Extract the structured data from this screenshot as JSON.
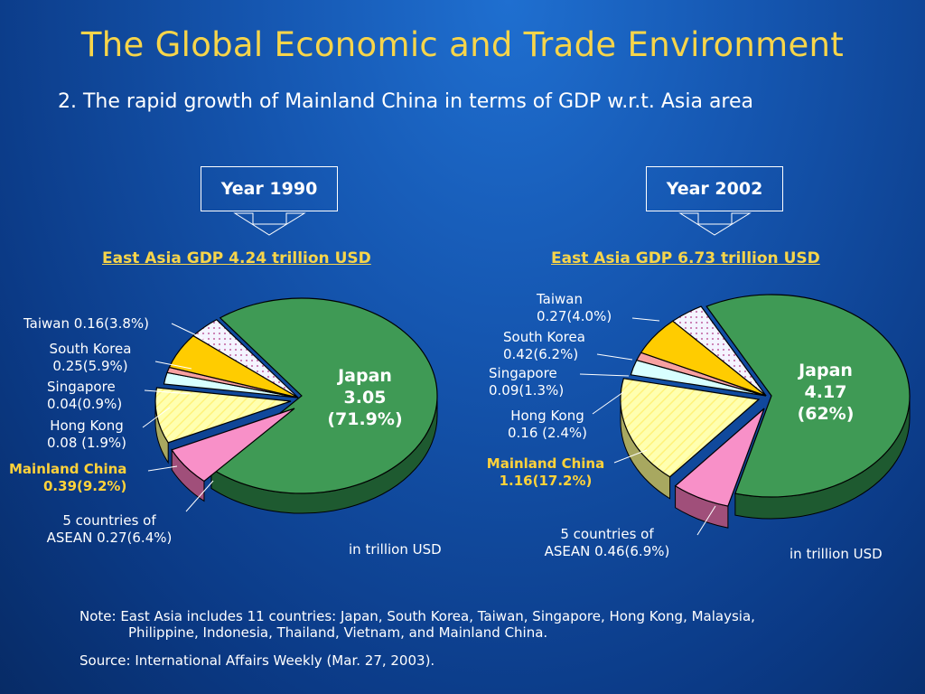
{
  "title": "The Global Economic and Trade Environment",
  "subtitle": "2. The rapid growth of Mainland China in terms of GDP w.r.t. Asia area",
  "colors": {
    "title": "#f7d54a",
    "japan": "#3f9a55",
    "mainland": "#ffffc0",
    "asean": "#f890c8",
    "hongkong": "#d8ffff",
    "singapore": "#f8a0a0",
    "korea": "#ffcc00",
    "taiwan": "#f4f4ff"
  },
  "chart_data": [
    {
      "type": "pie",
      "year_label": "Year 1990",
      "title": "East Asia GDP 4.24 trillion USD",
      "unit_note": "in trillion USD",
      "slices": [
        {
          "name": "Japan",
          "value": 3.05,
          "percent": 71.9,
          "label_lines": [
            "Japan",
            "3.05",
            "(71.9%)"
          ]
        },
        {
          "name": "5 countries of ASEAN",
          "value": 0.27,
          "percent": 6.4,
          "label_lines": [
            "5 countries of",
            "ASEAN 0.27(6.4%)"
          ]
        },
        {
          "name": "Mainland China",
          "value": 0.39,
          "percent": 9.2,
          "label_lines": [
            "Mainland China",
            "0.39(9.2%)"
          ]
        },
        {
          "name": "Hong Kong",
          "value": 0.08,
          "percent": 1.9,
          "label_lines": [
            "Hong Kong",
            "0.08 (1.9%)"
          ]
        },
        {
          "name": "Singapore",
          "value": 0.04,
          "percent": 0.9,
          "label_lines": [
            "Singapore",
            "0.04(0.9%)"
          ]
        },
        {
          "name": "South Korea",
          "value": 0.25,
          "percent": 5.9,
          "label_lines": [
            "South Korea",
            "0.25(5.9%)"
          ]
        },
        {
          "name": "Taiwan",
          "value": 0.16,
          "percent": 3.8,
          "label_lines": [
            "Taiwan 0.16(3.8%)"
          ]
        }
      ]
    },
    {
      "type": "pie",
      "year_label": "Year 2002",
      "title": "East Asia GDP 6.73 trillion USD",
      "unit_note": "in trillion USD",
      "slices": [
        {
          "name": "Japan",
          "value": 4.17,
          "percent": 62,
          "label_lines": [
            "Japan",
            "4.17",
            "(62%)"
          ]
        },
        {
          "name": "5 countries of ASEAN",
          "value": 0.46,
          "percent": 6.9,
          "label_lines": [
            "5 countries of",
            "ASEAN 0.46(6.9%)"
          ]
        },
        {
          "name": "Mainland China",
          "value": 1.16,
          "percent": 17.2,
          "label_lines": [
            "Mainland China",
            "1.16(17.2%)"
          ]
        },
        {
          "name": "Hong Kong",
          "value": 0.16,
          "percent": 2.4,
          "label_lines": [
            "Hong Kong",
            "0.16 (2.4%)"
          ]
        },
        {
          "name": "Singapore",
          "value": 0.09,
          "percent": 1.3,
          "label_lines": [
            "Singapore",
            "0.09(1.3%)"
          ]
        },
        {
          "name": "South Korea",
          "value": 0.42,
          "percent": 6.2,
          "label_lines": [
            "South Korea",
            "0.42(6.2%)"
          ]
        },
        {
          "name": "Taiwan",
          "value": 0.27,
          "percent": 4.0,
          "label_lines": [
            "Taiwan",
            "0.27(4.0%)"
          ]
        }
      ]
    }
  ],
  "note": {
    "line1": "Note: East Asia includes 11 countries: Japan, South Korea, Taiwan, Singapore, Hong Kong, Malaysia,",
    "line2": "Philippine, Indonesia, Thailand, Vietnam, and Mainland China.",
    "source": "Source: International Affairs Weekly (Mar. 27, 2003)."
  }
}
